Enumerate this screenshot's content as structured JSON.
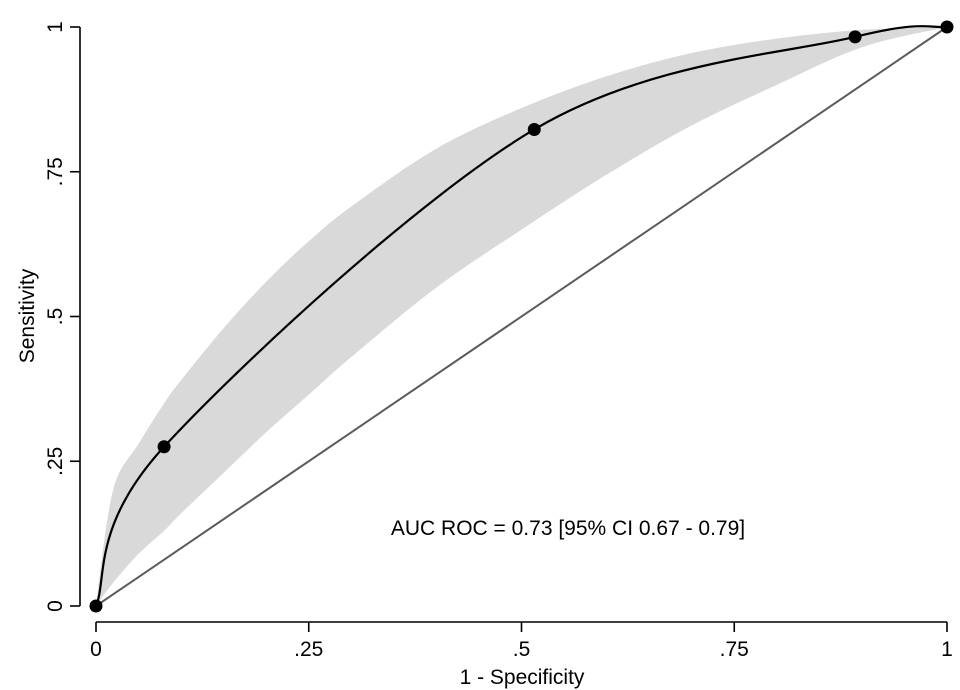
{
  "chart_data": {
    "type": "line",
    "xlabel": "1 - Specificity",
    "ylabel": "Sensitivity",
    "xlim": [
      0,
      1
    ],
    "ylim": [
      0,
      1
    ],
    "x_ticks": [
      {
        "value": 0,
        "label": "0"
      },
      {
        "value": 0.25,
        "label": ".25"
      },
      {
        "value": 0.5,
        "label": ".5"
      },
      {
        "value": 0.75,
        "label": ".75"
      },
      {
        "value": 1,
        "label": "1"
      }
    ],
    "y_ticks": [
      {
        "value": 0,
        "label": "0"
      },
      {
        "value": 0.25,
        "label": ".25"
      },
      {
        "value": 0.5,
        "label": ".5"
      },
      {
        "value": 0.75,
        "label": ".75"
      },
      {
        "value": 1,
        "label": "1"
      }
    ],
    "grid": false,
    "points": [
      {
        "x": 0,
        "y": 0
      },
      {
        "x": 0.08,
        "y": 0.275
      },
      {
        "x": 0.515,
        "y": 0.823
      },
      {
        "x": 0.892,
        "y": 0.983
      },
      {
        "x": 1,
        "y": 1
      }
    ],
    "reference_line": {
      "x": [
        0,
        1
      ],
      "y": [
        0,
        1
      ]
    },
    "confidence_band": {
      "x": [
        0,
        0.02,
        0.05,
        0.08,
        0.1,
        0.15,
        0.2,
        0.25,
        0.3,
        0.4,
        0.5,
        0.6,
        0.7,
        0.8,
        0.9,
        1
      ],
      "upper": [
        0,
        0.2,
        0.28,
        0.35,
        0.39,
        0.48,
        0.56,
        0.63,
        0.69,
        0.79,
        0.86,
        0.915,
        0.955,
        0.98,
        0.995,
        1
      ],
      "lower": [
        0,
        0.04,
        0.09,
        0.13,
        0.16,
        0.23,
        0.3,
        0.365,
        0.43,
        0.55,
        0.65,
        0.745,
        0.83,
        0.9,
        0.965,
        1
      ]
    },
    "annotation": "AUC ROC = 0.73 [95% CI 0.67 - 0.79]",
    "colors": {
      "band": "#d9d9d9",
      "curve": "#000000",
      "reference": "#5a5a5a",
      "points": "#000000"
    }
  }
}
